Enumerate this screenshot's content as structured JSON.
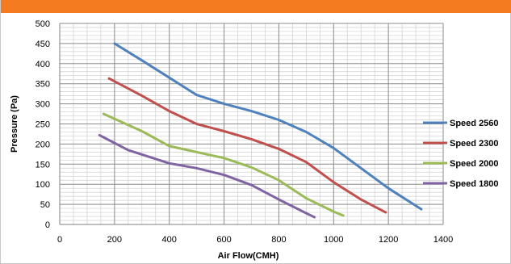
{
  "chart_data": {
    "type": "line",
    "title": "",
    "xlabel": "Air Flow(CMH)",
    "ylabel": "Pressure (Pa)",
    "xlim": [
      0,
      1400
    ],
    "ylim": [
      0,
      500
    ],
    "x_major_step": 200,
    "x_minor_step": 50,
    "y_major_step": 50,
    "y_minor_step": 10,
    "grid": true,
    "legend_position": "right",
    "x_ticks": [
      "0",
      "200",
      "400",
      "600",
      "800",
      "1000",
      "1200",
      "1400"
    ],
    "y_ticks": [
      "0",
      "50",
      "100",
      "150",
      "200",
      "250",
      "300",
      "350",
      "400",
      "450",
      "500"
    ],
    "series": [
      {
        "name": "Speed 2560",
        "color": "#4f81bd",
        "points": [
          [
            200,
            450
          ],
          [
            300,
            408
          ],
          [
            400,
            365
          ],
          [
            500,
            322
          ],
          [
            600,
            300
          ],
          [
            700,
            282
          ],
          [
            800,
            260
          ],
          [
            900,
            230
          ],
          [
            1000,
            190
          ],
          [
            1100,
            140
          ],
          [
            1200,
            90
          ],
          [
            1320,
            38
          ]
        ]
      },
      {
        "name": "Speed 2300",
        "color": "#c0504d",
        "points": [
          [
            180,
            363
          ],
          [
            300,
            320
          ],
          [
            400,
            282
          ],
          [
            500,
            250
          ],
          [
            600,
            232
          ],
          [
            700,
            212
          ],
          [
            800,
            188
          ],
          [
            900,
            155
          ],
          [
            1000,
            105
          ],
          [
            1100,
            62
          ],
          [
            1190,
            30
          ]
        ]
      },
      {
        "name": "Speed 2000",
        "color": "#9bbb59",
        "points": [
          [
            160,
            275
          ],
          [
            300,
            232
          ],
          [
            400,
            195
          ],
          [
            500,
            180
          ],
          [
            600,
            165
          ],
          [
            700,
            142
          ],
          [
            800,
            110
          ],
          [
            900,
            65
          ],
          [
            1000,
            32
          ],
          [
            1035,
            22
          ]
        ]
      },
      {
        "name": "Speed 1800",
        "color": "#8064a2",
        "points": [
          [
            145,
            222
          ],
          [
            250,
            185
          ],
          [
            400,
            152
          ],
          [
            500,
            140
          ],
          [
            600,
            123
          ],
          [
            700,
            98
          ],
          [
            800,
            62
          ],
          [
            900,
            28
          ],
          [
            930,
            18
          ]
        ]
      }
    ]
  }
}
